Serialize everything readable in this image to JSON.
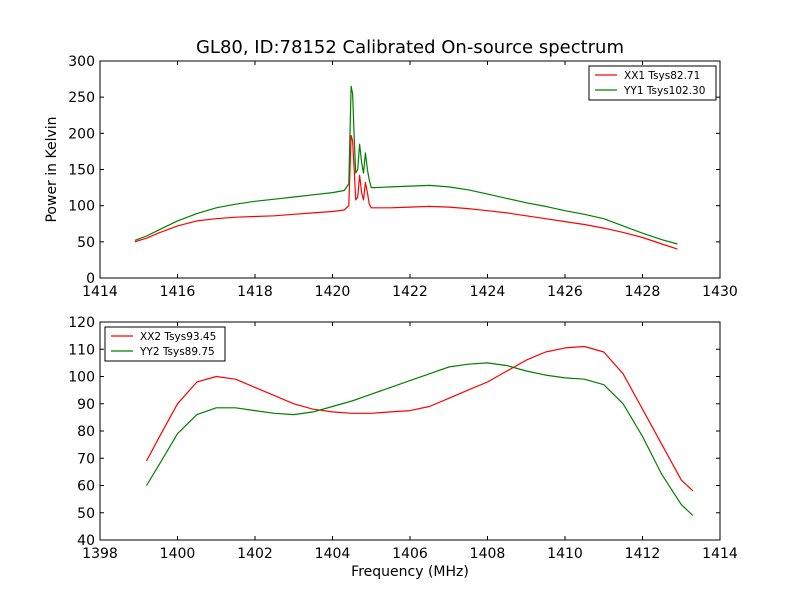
{
  "title": "GL80, ID:78152 Calibrated On-source spectrum",
  "chart_data": [
    {
      "type": "line",
      "ylabel": "Power in Kelvin",
      "xlabel": "",
      "xlim": [
        1414,
        1430
      ],
      "ylim": [
        0,
        300
      ],
      "xticks": [
        "1414",
        "1416",
        "1418",
        "1420",
        "1422",
        "1424",
        "1426",
        "1428",
        "1430"
      ],
      "yticks": [
        "0",
        "50",
        "100",
        "150",
        "200",
        "250",
        "300"
      ],
      "grid": false,
      "legend_position": "top-right",
      "series": [
        {
          "name": "XX1 Tsys82.71",
          "color": "#ff0000",
          "x": [
            1414.9,
            1415.2,
            1415.5,
            1416.0,
            1416.5,
            1417.0,
            1417.5,
            1418.0,
            1418.5,
            1419.0,
            1419.5,
            1420.0,
            1420.3,
            1420.42,
            1420.48,
            1420.52,
            1420.56,
            1420.6,
            1420.65,
            1420.7,
            1420.75,
            1420.8,
            1420.85,
            1420.9,
            1420.95,
            1421.0,
            1421.1,
            1421.5,
            1422.0,
            1422.5,
            1423.0,
            1423.5,
            1424.0,
            1424.5,
            1425.0,
            1425.5,
            1426.0,
            1426.5,
            1427.0,
            1427.5,
            1428.0,
            1428.5,
            1428.9
          ],
          "y": [
            50,
            55,
            62,
            72,
            79,
            82,
            84,
            85,
            86,
            88,
            90,
            92,
            94,
            100,
            197,
            190,
            150,
            108,
            112,
            142,
            118,
            108,
            132,
            118,
            102,
            97,
            97,
            97,
            98,
            99,
            98,
            96,
            93,
            90,
            86,
            82,
            78,
            74,
            69,
            63,
            56,
            47,
            40
          ]
        },
        {
          "name": "YY1 Tsys102.30",
          "color": "#008000",
          "x": [
            1414.9,
            1415.2,
            1415.5,
            1416.0,
            1416.5,
            1417.0,
            1417.5,
            1418.0,
            1418.5,
            1419.0,
            1419.5,
            1420.0,
            1420.3,
            1420.42,
            1420.48,
            1420.52,
            1420.56,
            1420.6,
            1420.65,
            1420.7,
            1420.75,
            1420.8,
            1420.85,
            1420.9,
            1420.95,
            1421.0,
            1421.1,
            1421.5,
            1422.0,
            1422.5,
            1423.0,
            1423.5,
            1424.0,
            1424.5,
            1425.0,
            1425.5,
            1426.0,
            1426.5,
            1427.0,
            1427.5,
            1428.0,
            1428.5,
            1428.9
          ],
          "y": [
            52,
            58,
            66,
            79,
            89,
            97,
            102,
            106,
            109,
            112,
            115,
            118,
            121,
            130,
            265,
            255,
            195,
            145,
            150,
            185,
            160,
            145,
            173,
            150,
            135,
            125,
            125,
            126,
            127,
            128,
            126,
            122,
            116,
            110,
            104,
            99,
            93,
            88,
            82,
            72,
            62,
            53,
            47
          ]
        }
      ]
    },
    {
      "type": "line",
      "ylabel": "",
      "xlabel": "Frequency (MHz)",
      "xlim": [
        1398,
        1414
      ],
      "ylim": [
        40,
        120
      ],
      "xticks": [
        "1398",
        "1400",
        "1402",
        "1404",
        "1406",
        "1408",
        "1410",
        "1412",
        "1414"
      ],
      "yticks": [
        "40",
        "50",
        "60",
        "70",
        "80",
        "90",
        "100",
        "110",
        "120"
      ],
      "grid": false,
      "legend_position": "top-left",
      "series": [
        {
          "name": "XX2 Tsys93.45",
          "color": "#ff0000",
          "x": [
            1399.2,
            1399.5,
            1400.0,
            1400.5,
            1401.0,
            1401.5,
            1402.0,
            1402.5,
            1403.0,
            1403.5,
            1404.0,
            1404.5,
            1405.0,
            1405.5,
            1406.0,
            1406.5,
            1407.0,
            1407.5,
            1408.0,
            1408.5,
            1409.0,
            1409.5,
            1410.0,
            1410.5,
            1411.0,
            1411.5,
            1412.0,
            1412.5,
            1413.0,
            1413.3
          ],
          "y": [
            69,
            77,
            90,
            98,
            100,
            99,
            96,
            93,
            90,
            88,
            87,
            86.5,
            86.5,
            87,
            87.5,
            89,
            92,
            95,
            98,
            102,
            106,
            109,
            110.5,
            111,
            109,
            101,
            88,
            75,
            62,
            58
          ]
        },
        {
          "name": "YY2 Tsys89.75",
          "color": "#008000",
          "x": [
            1399.2,
            1399.5,
            1400.0,
            1400.5,
            1401.0,
            1401.5,
            1402.0,
            1402.5,
            1403.0,
            1403.5,
            1404.0,
            1404.5,
            1405.0,
            1405.5,
            1406.0,
            1406.5,
            1407.0,
            1407.5,
            1408.0,
            1408.5,
            1409.0,
            1409.5,
            1410.0,
            1410.5,
            1411.0,
            1411.5,
            1412.0,
            1412.5,
            1413.0,
            1413.3
          ],
          "y": [
            60,
            67,
            79,
            86,
            88.5,
            88.5,
            87.5,
            86.5,
            86,
            87,
            89,
            91,
            93.5,
            96,
            98.5,
            101,
            103.5,
            104.5,
            105,
            104,
            102,
            100.5,
            99.5,
            99,
            97,
            90,
            78,
            64,
            53,
            49
          ]
        }
      ]
    }
  ]
}
